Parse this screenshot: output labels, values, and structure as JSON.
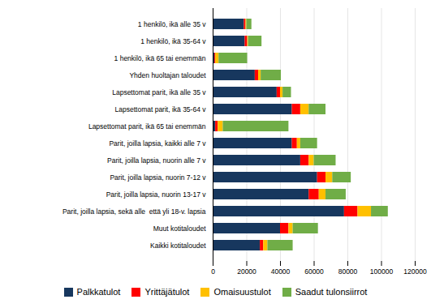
{
  "chart_data": {
    "type": "bar",
    "orientation": "horizontal",
    "stacked": true,
    "categories": [
      "1 henkilö, ikä alle 35 v",
      "1 henkilö, ikä 35-64 v",
      "1 henkilö, ikä 65 tai enemmän",
      "Yhden huoltajan taloudet",
      "Lapsettomat parit, ikä alle 35 v",
      "Lapsettomat parit, ikä 35-64 v",
      "Lapsettomat parit, ikä 65 tai enemmän",
      "Parit, joilla lapsia, kaikki alle 7 v",
      "Parit, joilla lapsia, nuorin alle 7 v",
      "Parit, joilla lapsia, nuorin 7-12 v",
      "Parit, joilla lapsia, nuorin 13-17 v",
      "Parit, joilla lapsia, sekä alle  että yli 18-v. lapsia",
      "Muut kotitaloudet",
      "Kaikki kotitaloudet"
    ],
    "series": [
      {
        "name": "Palkkatulot",
        "color": "#17375E",
        "values": [
          18500,
          19000,
          1000,
          25000,
          38000,
          47000,
          1500,
          47000,
          52000,
          62000,
          57000,
          78000,
          40000,
          28000
        ]
      },
      {
        "name": "Yrittäjätulot",
        "color": "#FF0000",
        "values": [
          1000,
          1500,
          500,
          2000,
          2000,
          5000,
          1500,
          3000,
          5000,
          5000,
          6000,
          8000,
          5000,
          2000
        ]
      },
      {
        "name": "Omaisuustulot",
        "color": "#FFC000",
        "values": [
          500,
          500,
          2000,
          1500,
          1500,
          5000,
          3000,
          2000,
          3000,
          4000,
          4000,
          8000,
          2500,
          2500
        ]
      },
      {
        "name": "Saadut tulonsiirrot",
        "color": "#70AD47",
        "values": [
          3000,
          8000,
          17000,
          12000,
          5000,
          10000,
          39000,
          10000,
          13000,
          11000,
          12000,
          10000,
          15000,
          15000
        ]
      }
    ],
    "xlim": [
      0,
      120000
    ],
    "xticks": [
      0,
      20000,
      40000,
      60000,
      80000,
      100000,
      120000
    ],
    "grid": true,
    "legend": "bottom"
  }
}
